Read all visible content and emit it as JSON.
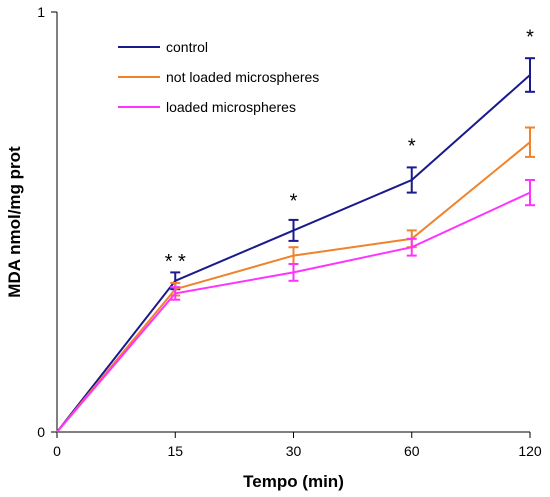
{
  "chart_data": {
    "type": "line",
    "xlabel": "Tempo (min)",
    "ylabel": "MDA nmol/mg prot",
    "ylim": [
      0,
      1
    ],
    "y_ticks": [
      "0",
      "1"
    ],
    "categories": [
      "0",
      "15",
      "30",
      "60",
      "120"
    ],
    "grid": false,
    "legend_position": "top-left",
    "series": [
      {
        "name": "control",
        "color": "#1a1a8c",
        "values": [
          0,
          0.36,
          0.48,
          0.6,
          0.85
        ],
        "errors": [
          0,
          0.02,
          0.025,
          0.03,
          0.04
        ]
      },
      {
        "name": "not loaded microspheres",
        "color": "#f0822a",
        "values": [
          0,
          0.34,
          0.42,
          0.46,
          0.69
        ],
        "errors": [
          0,
          0.015,
          0.02,
          0.02,
          0.035
        ]
      },
      {
        "name": "loaded microspheres",
        "color": "#ff33ff",
        "values": [
          0,
          0.33,
          0.38,
          0.44,
          0.57
        ],
        "errors": [
          0,
          0.015,
          0.02,
          0.02,
          0.03
        ]
      }
    ],
    "annotations": [
      {
        "category": "15",
        "text": "* *",
        "y": 0.39
      },
      {
        "category": "30",
        "text": "*",
        "y": 0.535
      },
      {
        "category": "60",
        "text": "*",
        "y": 0.665
      },
      {
        "category": "120",
        "text": "*",
        "y": 0.925
      }
    ]
  }
}
